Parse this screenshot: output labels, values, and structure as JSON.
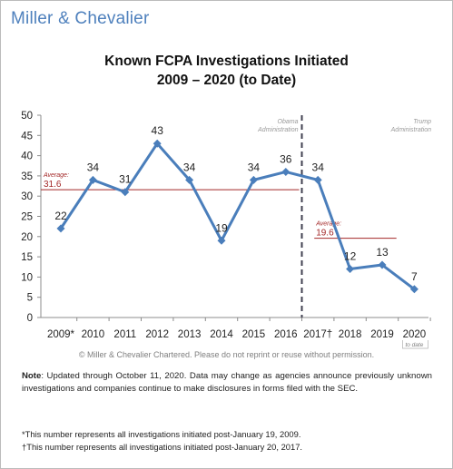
{
  "brand": "Miller & Chevalier",
  "chart_data": {
    "type": "line",
    "title": "Known FCPA Investigations Initiated",
    "subtitle": "2009 – 2020 (to Date)",
    "categories": [
      "2009*",
      "2010",
      "2011",
      "2012",
      "2013",
      "2014",
      "2015",
      "2016",
      "2017†",
      "2018",
      "2019",
      "2020"
    ],
    "series": [
      {
        "values": [
          22,
          34,
          31,
          43,
          34,
          19,
          34,
          36,
          34,
          12,
          13,
          7
        ]
      }
    ],
    "data_labels": [
      "22",
      "34",
      "31",
      "43",
      "34",
      "19",
      "34",
      "36",
      "34",
      "12",
      "13",
      "7"
    ],
    "ylim": [
      0,
      50
    ],
    "yticks": [
      0,
      5,
      10,
      15,
      20,
      25,
      30,
      35,
      40,
      45,
      50
    ],
    "grid": false,
    "x_sublabel": "to date",
    "reference_lines": [
      {
        "label": "Average:",
        "value": 31.6,
        "value_text": "31.6",
        "from": "2009*",
        "to": "2016"
      },
      {
        "label": "Average:",
        "value": 19.6,
        "value_text": "19.6",
        "from": "2017†",
        "to": "2019"
      }
    ],
    "divider": {
      "after": "2016"
    },
    "annotations": [
      {
        "text": "Obama",
        "text2": "Administration"
      },
      {
        "text": "Trump",
        "text2": "Administration"
      }
    ],
    "colors": {
      "series": "#4a7ebb",
      "average": "#a32727",
      "divider": "#404050"
    }
  },
  "copyright": "© Miller & Chevalier Chartered. Please do not reprint or reuse without permission.",
  "note": {
    "label": "Note",
    "text": ": Updated through October 11, 2020. Data may change as agencies announce previously unknown investigations and companies continue to make disclosures in forms filed with the SEC."
  },
  "footnotes": [
    "*This number represents all investigations initiated post-January 19, 2009.",
    "†This number represents all investigations initiated post-January 20, 2017."
  ]
}
